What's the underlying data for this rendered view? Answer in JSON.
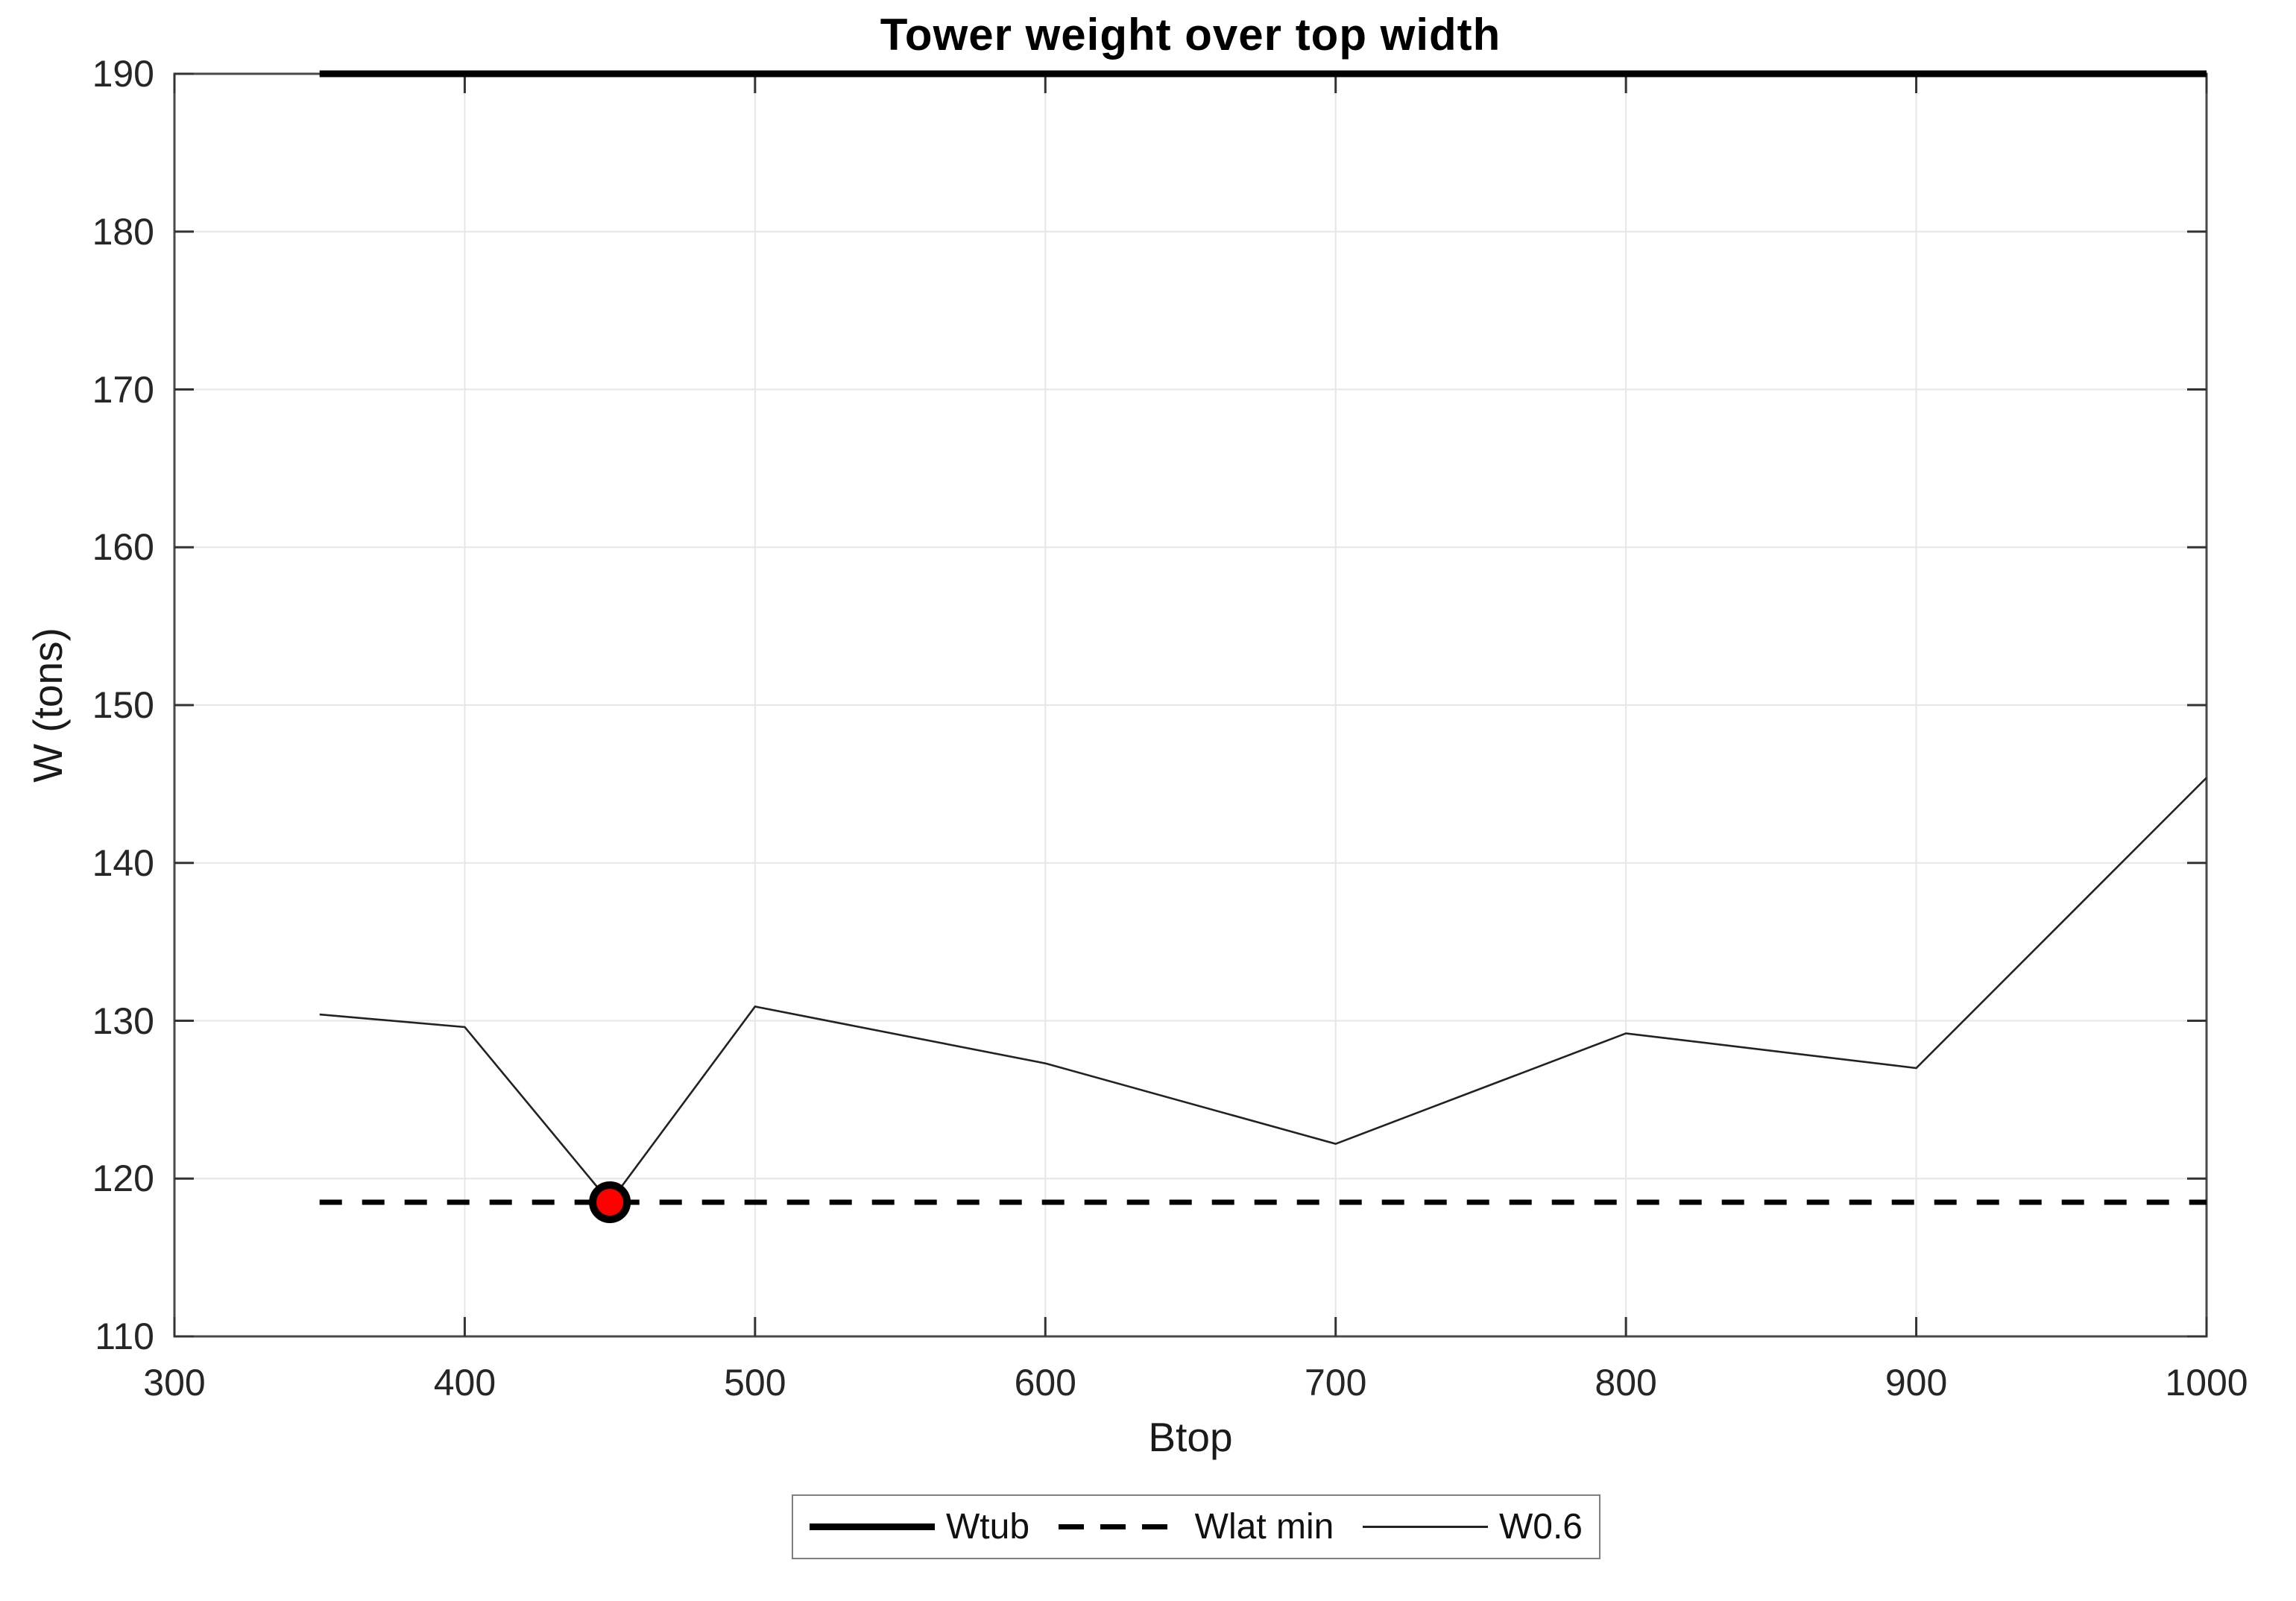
{
  "figure": {
    "title": "Tower weight over top width",
    "xlabel": "Btop",
    "ylabel": "W (tons)"
  },
  "chart_data": {
    "type": "line",
    "title": "Tower weight over top width",
    "xlabel": "Btop",
    "ylabel": "W (tons)",
    "xlim": [
      300,
      1000
    ],
    "ylim": [
      110,
      190
    ],
    "xticks": [
      300,
      400,
      500,
      600,
      700,
      800,
      900,
      1000
    ],
    "yticks": [
      110,
      120,
      130,
      140,
      150,
      160,
      170,
      180,
      190
    ],
    "grid": true,
    "legend_position": "below-plot-centered",
    "series": [
      {
        "name": "Wtub",
        "style": "solid-thick",
        "color": "#000000",
        "x": [
          350,
          1000
        ],
        "y": [
          190,
          190
        ]
      },
      {
        "name": "Wlat min",
        "style": "dashed",
        "color": "#000000",
        "x": [
          350,
          1000
        ],
        "y": [
          118.5,
          118.5
        ]
      },
      {
        "name": "W0.6",
        "style": "solid-thin",
        "color": "#222222",
        "x": [
          350,
          400,
          450,
          500,
          600,
          700,
          800,
          900,
          1000
        ],
        "y": [
          130.4,
          129.6,
          118.5,
          130.9,
          127.3,
          122.2,
          129.2,
          127.0,
          145.4
        ]
      }
    ],
    "highlight_marker": {
      "x": 450,
      "y": 118.5,
      "fill": "#ff0000",
      "edge": "#000000",
      "meaning": "minimum W0.6 point on Wlat min line"
    }
  },
  "colors": {
    "background": "#ffffff",
    "grid": "#e6e6e6",
    "axis_box": "#4a4a4a",
    "tick_mark": "#333333",
    "tick_label": "#262626",
    "legend_border": "#7f7f7f",
    "marker_fill": "#ff0000",
    "marker_edge": "#000000"
  }
}
